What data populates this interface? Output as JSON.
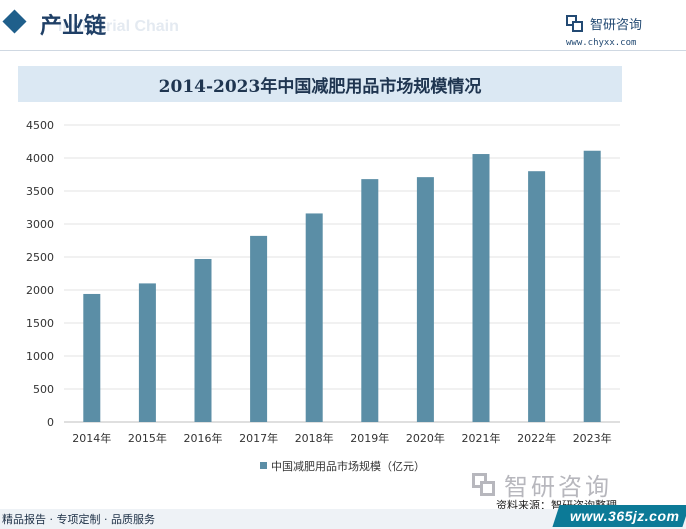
{
  "header": {
    "section_title": "产业链",
    "watermark_text": "Industrial Chain"
  },
  "logo": {
    "name": "智研咨询",
    "url": "www.chyxx.com"
  },
  "chart_data": {
    "type": "bar",
    "title": "2014-2023年中国减肥用品市场规模情况",
    "categories": [
      "2014年",
      "2015年",
      "2016年",
      "2017年",
      "2018年",
      "2019年",
      "2020年",
      "2021年",
      "2022年",
      "2023年"
    ],
    "series": [
      {
        "name": "中国减肥用品市场规模（亿元）",
        "values": [
          1940,
          2100,
          2470,
          2820,
          3160,
          3680,
          3710,
          4060,
          3800,
          4110
        ],
        "color": "#5b8ea6"
      }
    ],
    "ylim": [
      0,
      4500
    ],
    "yticks": [
      "0",
      "500",
      "1000",
      "1500",
      "2000",
      "2500",
      "3000",
      "3500",
      "4000",
      "4500"
    ],
    "grid": true,
    "legend_position": "bottom-center"
  },
  "footer": {
    "watermark_logo": "智研咨询",
    "source": "资料来源：智研咨询整理",
    "tagline": "精品报告 · 专项定制 · 品质服务",
    "site": "www.365jz.com"
  },
  "colors": {
    "bar": "#5b8ea6",
    "title_band": "#dbe8f3",
    "brand": "#234a73",
    "footer_accent": "#0c7a97"
  }
}
